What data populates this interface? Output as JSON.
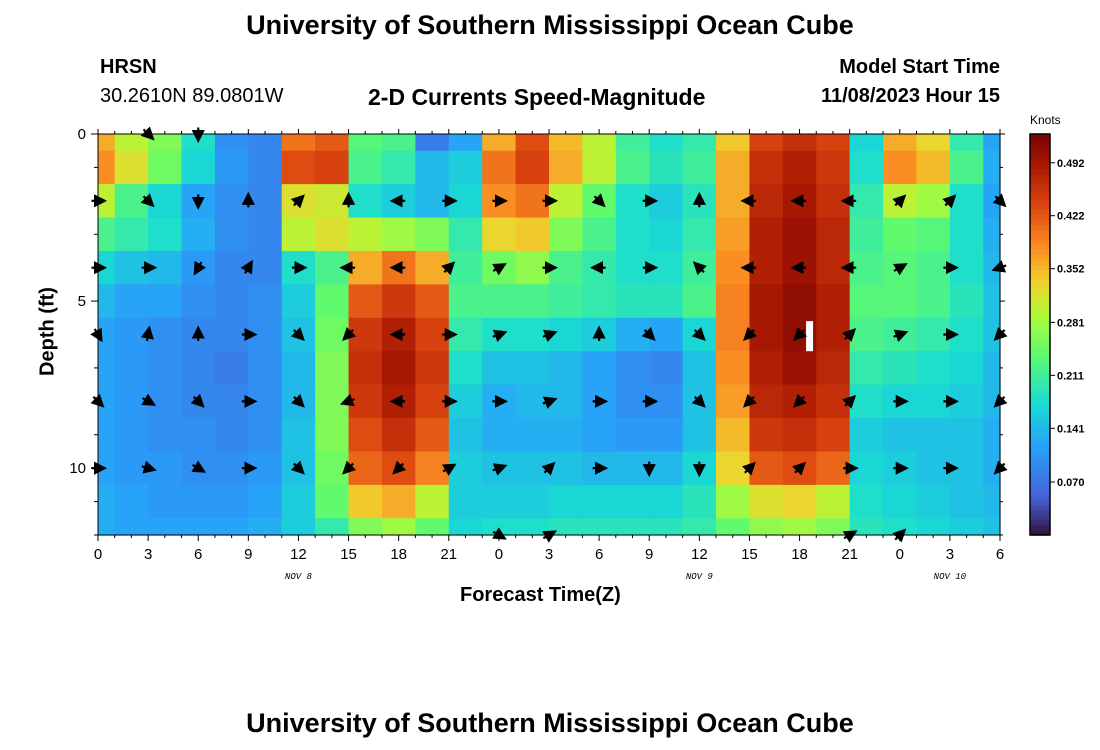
{
  "header": {
    "title": "University of Southern Mississippi Ocean Cube",
    "station": "HRSN",
    "coordinates": "30.2610N  89.0801W",
    "subtitle": "2-D Currents Speed-Magnitude",
    "model_start_label": "Model Start Time",
    "model_start_value": "11/08/2023 Hour 15"
  },
  "footer": {
    "title": "University of Southern Mississippi Ocean Cube"
  },
  "chart_data": {
    "type": "heatmap",
    "title": "2-D Currents Speed-Magnitude",
    "xlabel": "Forecast Time(Z)",
    "ylabel": "Depth (ft)",
    "x_range_hours": [
      0,
      54
    ],
    "y_range_ft": [
      0,
      12
    ],
    "x_ticks": [
      {
        "hour": 0,
        "label": "0"
      },
      {
        "hour": 3,
        "label": "3"
      },
      {
        "hour": 6,
        "label": "6"
      },
      {
        "hour": 9,
        "label": "9"
      },
      {
        "hour": 12,
        "label": "12"
      },
      {
        "hour": 15,
        "label": "15"
      },
      {
        "hour": 18,
        "label": "18"
      },
      {
        "hour": 21,
        "label": "21"
      },
      {
        "hour": 24,
        "label": "0"
      },
      {
        "hour": 27,
        "label": "3"
      },
      {
        "hour": 30,
        "label": "6"
      },
      {
        "hour": 33,
        "label": "9"
      },
      {
        "hour": 36,
        "label": "12"
      },
      {
        "hour": 39,
        "label": "15"
      },
      {
        "hour": 42,
        "label": "18"
      },
      {
        "hour": 45,
        "label": "21"
      },
      {
        "hour": 48,
        "label": "0"
      },
      {
        "hour": 51,
        "label": "3"
      },
      {
        "hour": 54,
        "label": "6"
      }
    ],
    "date_labels": [
      {
        "hour": 12,
        "label": "NOV 8"
      },
      {
        "hour": 36,
        "label": "NOV 9"
      },
      {
        "hour": 51,
        "label": "NOV 10"
      }
    ],
    "y_ticks": [
      {
        "depth": 0,
        "label": "0"
      },
      {
        "depth": 5,
        "label": "5"
      },
      {
        "depth": 10,
        "label": "10"
      }
    ],
    "colorbar": {
      "unit": "Knots",
      "min": 0.0,
      "max": 0.53,
      "ticks": [
        0.07,
        0.141,
        0.211,
        0.281,
        0.352,
        0.422,
        0.492
      ],
      "tick_labels": [
        "0.070",
        "0.141",
        "0.211",
        "0.281",
        "0.352",
        "0.422",
        "0.492"
      ]
    },
    "current_time_hour": 42.6,
    "depth_levels_ft": [
      0,
      1,
      2,
      3,
      4,
      5,
      6,
      7,
      8,
      9,
      10,
      11,
      12
    ],
    "time_steps_hours": [
      0,
      2,
      4,
      6,
      8,
      10,
      12,
      14,
      16,
      18,
      20,
      22,
      24,
      26,
      28,
      30,
      32,
      34,
      36,
      38,
      40,
      42,
      44,
      46,
      48,
      50,
      52,
      54
    ],
    "speed_knots": [
      [
        0.36,
        0.3,
        0.26,
        0.18,
        0.1,
        0.09,
        0.4,
        0.42,
        0.23,
        0.22,
        0.08,
        0.12,
        0.36,
        0.43,
        0.35,
        0.3,
        0.21,
        0.18,
        0.2,
        0.34,
        0.44,
        0.46,
        0.44,
        0.17,
        0.36,
        0.33,
        0.2,
        0.12
      ],
      [
        0.38,
        0.32,
        0.25,
        0.17,
        0.11,
        0.09,
        0.43,
        0.44,
        0.22,
        0.2,
        0.14,
        0.16,
        0.4,
        0.44,
        0.36,
        0.3,
        0.22,
        0.19,
        0.21,
        0.36,
        0.46,
        0.48,
        0.45,
        0.18,
        0.38,
        0.35,
        0.22,
        0.13
      ],
      [
        0.3,
        0.22,
        0.17,
        0.12,
        0.1,
        0.09,
        0.32,
        0.31,
        0.18,
        0.16,
        0.14,
        0.17,
        0.38,
        0.4,
        0.3,
        0.24,
        0.18,
        0.16,
        0.19,
        0.36,
        0.47,
        0.49,
        0.46,
        0.2,
        0.3,
        0.28,
        0.18,
        0.12
      ],
      [
        0.22,
        0.2,
        0.18,
        0.13,
        0.1,
        0.09,
        0.3,
        0.32,
        0.3,
        0.28,
        0.26,
        0.2,
        0.33,
        0.34,
        0.26,
        0.22,
        0.18,
        0.17,
        0.2,
        0.37,
        0.48,
        0.5,
        0.47,
        0.21,
        0.24,
        0.23,
        0.18,
        0.13
      ],
      [
        0.17,
        0.15,
        0.14,
        0.11,
        0.09,
        0.09,
        0.18,
        0.22,
        0.36,
        0.4,
        0.36,
        0.21,
        0.25,
        0.27,
        0.22,
        0.2,
        0.18,
        0.18,
        0.21,
        0.38,
        0.48,
        0.5,
        0.47,
        0.22,
        0.23,
        0.22,
        0.18,
        0.14
      ],
      [
        0.14,
        0.12,
        0.12,
        0.1,
        0.09,
        0.1,
        0.16,
        0.24,
        0.42,
        0.45,
        0.42,
        0.22,
        0.22,
        0.22,
        0.21,
        0.2,
        0.19,
        0.19,
        0.22,
        0.39,
        0.49,
        0.51,
        0.48,
        0.23,
        0.23,
        0.22,
        0.19,
        0.15
      ],
      [
        0.12,
        0.11,
        0.1,
        0.09,
        0.09,
        0.1,
        0.15,
        0.25,
        0.45,
        0.48,
        0.44,
        0.2,
        0.18,
        0.18,
        0.17,
        0.16,
        0.13,
        0.12,
        0.17,
        0.39,
        0.49,
        0.51,
        0.48,
        0.22,
        0.21,
        0.2,
        0.18,
        0.15
      ],
      [
        0.12,
        0.11,
        0.1,
        0.09,
        0.08,
        0.1,
        0.14,
        0.26,
        0.46,
        0.49,
        0.45,
        0.18,
        0.15,
        0.15,
        0.14,
        0.12,
        0.1,
        0.09,
        0.15,
        0.38,
        0.48,
        0.5,
        0.47,
        0.2,
        0.19,
        0.18,
        0.17,
        0.14
      ],
      [
        0.12,
        0.11,
        0.1,
        0.09,
        0.09,
        0.1,
        0.14,
        0.26,
        0.45,
        0.48,
        0.44,
        0.16,
        0.13,
        0.14,
        0.14,
        0.12,
        0.1,
        0.1,
        0.15,
        0.37,
        0.47,
        0.48,
        0.46,
        0.18,
        0.17,
        0.17,
        0.16,
        0.14
      ],
      [
        0.12,
        0.11,
        0.1,
        0.1,
        0.09,
        0.1,
        0.15,
        0.26,
        0.43,
        0.46,
        0.42,
        0.15,
        0.13,
        0.13,
        0.13,
        0.12,
        0.11,
        0.11,
        0.15,
        0.35,
        0.45,
        0.46,
        0.44,
        0.16,
        0.15,
        0.15,
        0.15,
        0.13
      ],
      [
        0.12,
        0.11,
        0.11,
        0.1,
        0.1,
        0.11,
        0.15,
        0.25,
        0.41,
        0.43,
        0.39,
        0.16,
        0.15,
        0.15,
        0.15,
        0.14,
        0.14,
        0.14,
        0.17,
        0.33,
        0.42,
        0.43,
        0.41,
        0.17,
        0.16,
        0.15,
        0.15,
        0.13
      ],
      [
        0.13,
        0.12,
        0.11,
        0.11,
        0.11,
        0.12,
        0.16,
        0.24,
        0.34,
        0.36,
        0.3,
        0.16,
        0.16,
        0.16,
        0.17,
        0.17,
        0.17,
        0.17,
        0.19,
        0.28,
        0.32,
        0.33,
        0.3,
        0.18,
        0.17,
        0.16,
        0.15,
        0.14
      ],
      [
        0.13,
        0.12,
        0.12,
        0.12,
        0.12,
        0.13,
        0.16,
        0.2,
        0.26,
        0.28,
        0.24,
        0.17,
        0.18,
        0.18,
        0.19,
        0.19,
        0.19,
        0.19,
        0.2,
        0.24,
        0.27,
        0.28,
        0.26,
        0.19,
        0.18,
        0.17,
        0.16,
        0.15
      ]
    ],
    "vector_depths_ft": [
      0,
      2,
      4,
      6,
      8,
      10,
      12
    ],
    "vector_hours": [
      0,
      3,
      6,
      9,
      12,
      15,
      18,
      21,
      24,
      27,
      30,
      33,
      36,
      39,
      42,
      45,
      48,
      51,
      54
    ],
    "vector_dir_deg": [
      [
        null,
        315,
        270,
        null,
        null,
        null,
        null,
        null,
        null,
        null,
        null,
        null,
        null,
        null,
        null,
        null,
        null,
        null,
        null
      ],
      [
        0,
        315,
        270,
        90,
        45,
        90,
        180,
        0,
        0,
        0,
        315,
        0,
        90,
        180,
        180,
        180,
        45,
        45,
        315
      ],
      [
        0,
        0,
        240,
        60,
        0,
        180,
        180,
        45,
        30,
        0,
        180,
        0,
        135,
        180,
        180,
        180,
        30,
        0,
        200
      ],
      [
        300,
        80,
        90,
        0,
        315,
        225,
        180,
        0,
        20,
        20,
        90,
        315,
        315,
        225,
        225,
        45,
        20,
        0,
        225
      ],
      [
        315,
        330,
        315,
        0,
        315,
        200,
        180,
        0,
        0,
        20,
        0,
        0,
        315,
        225,
        225,
        45,
        0,
        0,
        225
      ],
      [
        0,
        345,
        330,
        0,
        315,
        225,
        225,
        30,
        20,
        45,
        0,
        270,
        270,
        45,
        45,
        0,
        0,
        0,
        225
      ],
      [
        null,
        null,
        null,
        null,
        null,
        null,
        null,
        null,
        330,
        30,
        null,
        null,
        null,
        null,
        null,
        30,
        45,
        null,
        null
      ]
    ],
    "annotations": [
      "current time marker at hour 42.6, depth 5.6 to 6.5 ft"
    ]
  }
}
